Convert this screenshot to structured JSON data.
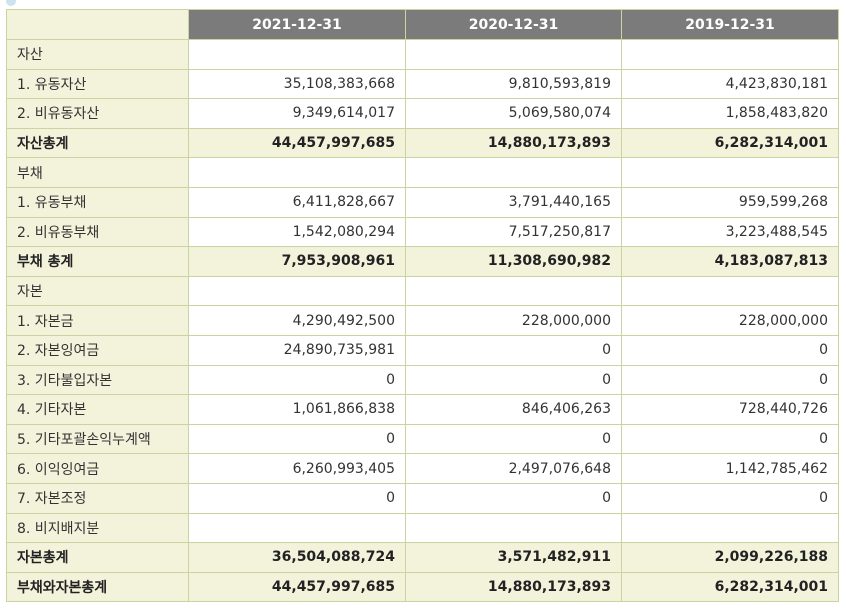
{
  "table": {
    "columns": [
      "2021-12-31",
      "2020-12-31",
      "2019-12-31"
    ],
    "rows": [
      {
        "label": "자산",
        "values": [
          "",
          "",
          ""
        ],
        "type": "section"
      },
      {
        "label": "1. 유동자산",
        "values": [
          "35,108,383,668",
          "9,810,593,819",
          "4,423,830,181"
        ],
        "type": "item"
      },
      {
        "label": "2. 비유동자산",
        "values": [
          "9,349,614,017",
          "5,069,580,074",
          "1,858,483,820"
        ],
        "type": "item"
      },
      {
        "label": "자산총계",
        "values": [
          "44,457,997,685",
          "14,880,173,893",
          "6,282,314,001"
        ],
        "type": "total"
      },
      {
        "label": "부채",
        "values": [
          "",
          "",
          ""
        ],
        "type": "section"
      },
      {
        "label": "1. 유동부채",
        "values": [
          "6,411,828,667",
          "3,791,440,165",
          "959,599,268"
        ],
        "type": "item"
      },
      {
        "label": "2. 비유동부채",
        "values": [
          "1,542,080,294",
          "7,517,250,817",
          "3,223,488,545"
        ],
        "type": "item"
      },
      {
        "label": "부채 총계",
        "values": [
          "7,953,908,961",
          "11,308,690,982",
          "4,183,087,813"
        ],
        "type": "total"
      },
      {
        "label": "자본",
        "values": [
          "",
          "",
          ""
        ],
        "type": "section"
      },
      {
        "label": "1. 자본금",
        "values": [
          "4,290,492,500",
          "228,000,000",
          "228,000,000"
        ],
        "type": "item"
      },
      {
        "label": "2. 자본잉여금",
        "values": [
          "24,890,735,981",
          "0",
          "0"
        ],
        "type": "item"
      },
      {
        "label": "3. 기타불입자본",
        "values": [
          "0",
          "0",
          "0"
        ],
        "type": "item"
      },
      {
        "label": "4. 기타자본",
        "values": [
          "1,061,866,838",
          "846,406,263",
          "728,440,726"
        ],
        "type": "item"
      },
      {
        "label": "5. 기타포괄손익누계액",
        "values": [
          "0",
          "0",
          "0"
        ],
        "type": "item"
      },
      {
        "label": "6. 이익잉여금",
        "values": [
          "6,260,993,405",
          "2,497,076,648",
          "1,142,785,462"
        ],
        "type": "item"
      },
      {
        "label": "7. 자본조정",
        "values": [
          "0",
          "0",
          "0"
        ],
        "type": "item"
      },
      {
        "label": "8. 비지배지분",
        "values": [
          "",
          "",
          ""
        ],
        "type": "item"
      },
      {
        "label": "자본총계",
        "values": [
          "36,504,088,724",
          "3,571,482,911",
          "2,099,226,188"
        ],
        "type": "total"
      },
      {
        "label": "부채와자본총계",
        "values": [
          "44,457,997,685",
          "14,880,173,893",
          "6,282,314,001"
        ],
        "type": "total"
      }
    ]
  }
}
